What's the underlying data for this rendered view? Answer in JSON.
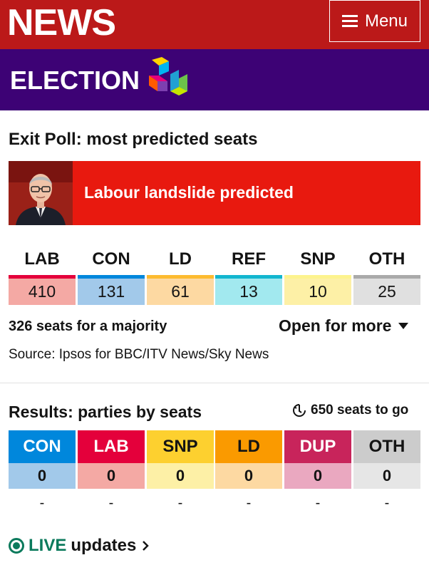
{
  "header": {
    "brand": "NEWS",
    "menu_label": "Menu"
  },
  "election": {
    "title": "ELECTION",
    "logo": "24"
  },
  "exit_poll": {
    "title": "Exit Poll: most predicted seats",
    "banner": "Labour landslide predicted",
    "parties": [
      {
        "code": "LAB",
        "seats": "410",
        "color": "#e4003b",
        "tint": "#f4a9a4"
      },
      {
        "code": "CON",
        "seats": "131",
        "color": "#0087dc",
        "tint": "#a2c9ea"
      },
      {
        "code": "LD",
        "seats": "61",
        "color": "#fdbb30",
        "tint": "#fdd9a2"
      },
      {
        "code": "REF",
        "seats": "13",
        "color": "#12b6cf",
        "tint": "#a2e9ef"
      },
      {
        "code": "SNP",
        "seats": "10",
        "color": "#fdf38e",
        "tint": "#fdf0a6"
      },
      {
        "code": "OTH",
        "seats": "25",
        "color": "#aaaaaa",
        "tint": "#e0e0e0"
      }
    ],
    "majority_text": "326 seats for a majority",
    "open_more": "Open for more",
    "source": "Source: Ipsos for BBC/ITV News/Sky News"
  },
  "results": {
    "title": "Results: parties by seats",
    "seats_to_go": "650 seats to go",
    "parties": [
      {
        "code": "CON",
        "seats": "0",
        "change": "-",
        "color": "#0087dc",
        "tint": "#a2c9ea",
        "text": "#ffffff"
      },
      {
        "code": "LAB",
        "seats": "0",
        "change": "-",
        "color": "#e4003b",
        "tint": "#f4a9a4",
        "text": "#ffffff"
      },
      {
        "code": "SNP",
        "seats": "0",
        "change": "-",
        "color": "#fdd02f",
        "tint": "#fdf0a6",
        "text": "#141414"
      },
      {
        "code": "LD",
        "seats": "0",
        "change": "-",
        "color": "#fa9a00",
        "tint": "#fdd9a2",
        "text": "#141414"
      },
      {
        "code": "DUP",
        "seats": "0",
        "change": "-",
        "color": "#c8245b",
        "tint": "#eaa8c0",
        "text": "#ffffff"
      },
      {
        "code": "OTH",
        "seats": "0",
        "change": "-",
        "color": "#cccccc",
        "tint": "#e6e6e6",
        "text": "#141414"
      }
    ]
  },
  "live": {
    "live_label": "LIVE",
    "updates_label": "updates"
  }
}
